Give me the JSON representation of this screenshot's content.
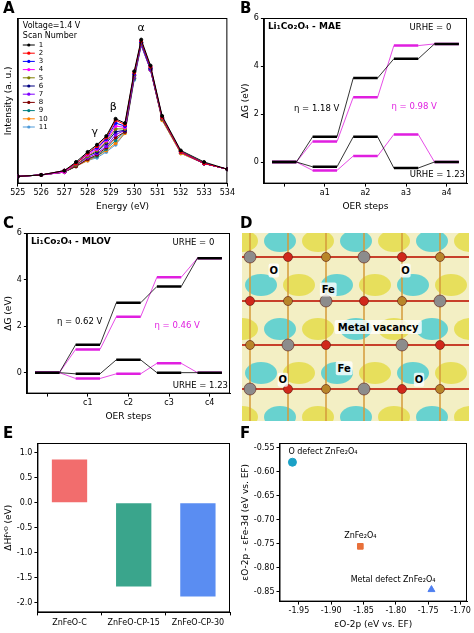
{
  "chart_data": [
    {
      "panel": "A",
      "type": "line",
      "note": "Voltage=1.4 V",
      "legend_title": "Scan Number",
      "legend": "upper left",
      "x_label": "Energy (eV)",
      "y_label": "Intensity (a. u.)",
      "x": [
        525,
        526,
        527,
        527.5,
        528,
        528.4,
        528.8,
        529.2,
        529.6,
        530,
        530.3,
        530.7,
        531.2,
        532,
        533,
        534
      ],
      "xlim": [
        525,
        534
      ],
      "xticks": [
        525,
        526,
        527,
        528,
        529,
        530,
        531,
        532,
        533,
        534
      ],
      "ylim": [
        0,
        1.15
      ],
      "tick_labels": "x",
      "grid": false,
      "marker": "circle",
      "series": [
        {
          "name": "1",
          "color": "#000000",
          "values": [
            0.05,
            0.06,
            0.09,
            0.15,
            0.22,
            0.27,
            0.33,
            0.45,
            0.42,
            0.78,
            1.0,
            0.82,
            0.47,
            0.23,
            0.15,
            0.1
          ]
        },
        {
          "name": "2",
          "color": "#ff0000",
          "values": [
            0.05,
            0.06,
            0.09,
            0.14,
            0.21,
            0.26,
            0.32,
            0.44,
            0.41,
            0.77,
            0.99,
            0.81,
            0.46,
            0.22,
            0.14,
            0.1
          ]
        },
        {
          "name": "3",
          "color": "#0000ff",
          "values": [
            0.05,
            0.06,
            0.09,
            0.14,
            0.21,
            0.25,
            0.31,
            0.42,
            0.4,
            0.76,
            0.98,
            0.8,
            0.46,
            0.22,
            0.14,
            0.1
          ]
        },
        {
          "name": "4",
          "color": "#ff00ff",
          "values": [
            0.05,
            0.06,
            0.08,
            0.14,
            0.2,
            0.24,
            0.3,
            0.4,
            0.39,
            0.76,
            0.99,
            0.81,
            0.46,
            0.22,
            0.14,
            0.1
          ]
        },
        {
          "name": "5",
          "color": "#808000",
          "values": [
            0.05,
            0.06,
            0.08,
            0.13,
            0.19,
            0.23,
            0.29,
            0.38,
            0.38,
            0.75,
            0.97,
            0.8,
            0.45,
            0.22,
            0.14,
            0.1
          ]
        },
        {
          "name": "6",
          "color": "#000080",
          "values": [
            0.05,
            0.06,
            0.08,
            0.13,
            0.19,
            0.22,
            0.28,
            0.36,
            0.37,
            0.75,
            0.98,
            0.8,
            0.45,
            0.22,
            0.14,
            0.1
          ]
        },
        {
          "name": "7",
          "color": "#8000ff",
          "values": [
            0.05,
            0.06,
            0.08,
            0.13,
            0.18,
            0.21,
            0.26,
            0.34,
            0.37,
            0.74,
            0.96,
            0.79,
            0.45,
            0.22,
            0.14,
            0.1
          ]
        },
        {
          "name": "8",
          "color": "#800000",
          "values": [
            0.05,
            0.06,
            0.08,
            0.12,
            0.17,
            0.2,
            0.25,
            0.32,
            0.36,
            0.74,
            0.97,
            0.79,
            0.45,
            0.22,
            0.14,
            0.1
          ]
        },
        {
          "name": "9",
          "color": "#008080",
          "values": [
            0.05,
            0.06,
            0.08,
            0.12,
            0.17,
            0.19,
            0.24,
            0.3,
            0.36,
            0.73,
            0.98,
            0.8,
            0.45,
            0.22,
            0.14,
            0.1
          ]
        },
        {
          "name": "10",
          "color": "#ff8000",
          "values": [
            0.05,
            0.06,
            0.08,
            0.12,
            0.16,
            0.19,
            0.23,
            0.28,
            0.35,
            0.73,
            0.97,
            0.79,
            0.44,
            0.21,
            0.14,
            0.1
          ]
        },
        {
          "name": "11",
          "color": "#4f9bd9",
          "values": [
            0.05,
            0.06,
            0.08,
            0.12,
            0.16,
            0.18,
            0.22,
            0.27,
            0.35,
            0.72,
            0.96,
            0.79,
            0.44,
            0.21,
            0.14,
            0.1
          ]
        }
      ],
      "annotations": [
        {
          "text": "α",
          "x": 530.3,
          "y": 1.08,
          "color": "#000000"
        },
        {
          "text": "β",
          "x": 529.1,
          "y": 0.53,
          "color": "#000000"
        },
        {
          "text": "γ",
          "x": 528.3,
          "y": 0.36,
          "color": "#000000"
        }
      ]
    },
    {
      "panel": "B",
      "type": "step",
      "title": "Li₁Co₂O₄ - MAE",
      "x_label": "OER steps",
      "y_label": "ΔG (eV)",
      "categories": [
        null,
        "a1",
        "a2",
        "a3",
        "a4"
      ],
      "ylim": [
        -0.9,
        6
      ],
      "yticks": [
        0,
        2,
        4,
        6
      ],
      "grid": false,
      "series": [
        {
          "color": "#000000",
          "values": [
            0,
            1.05,
            3.5,
            4.3,
            4.92
          ]
        },
        {
          "color": "#e020e0",
          "values": [
            0,
            0.85,
            2.7,
            4.85,
            4.92
          ]
        },
        {
          "color": "#000000",
          "values": [
            0,
            -0.2,
            1.05,
            -0.25,
            0
          ]
        },
        {
          "color": "#e020e0",
          "values": [
            0,
            -0.35,
            0.25,
            1.15,
            0
          ]
        }
      ],
      "annotations": [
        {
          "text": "URHE = 0",
          "x": 3.6,
          "y": 5.6,
          "color": "#000000"
        },
        {
          "text": "URHE = 1.23",
          "x": 3.9,
          "y": -0.55,
          "color": "#000000"
        },
        {
          "text": "η = 1.18 V",
          "x": 0.8,
          "y": 2.2,
          "color": "#000000"
        },
        {
          "text": "η = 0.98 V",
          "x": 3.2,
          "y": 2.3,
          "color": "#e020e0"
        }
      ]
    },
    {
      "panel": "C",
      "type": "step",
      "title": "Li₁Co₂O₄ - MLOV",
      "x_label": "OER steps",
      "y_label": "ΔG (eV)",
      "categories": [
        null,
        "c1",
        "c2",
        "c3",
        "c4"
      ],
      "ylim": [
        -0.9,
        6
      ],
      "yticks": [
        0,
        2,
        4,
        6
      ],
      "grid": false,
      "series": [
        {
          "color": "#000000",
          "values": [
            0,
            1.2,
            3.0,
            3.7,
            4.92
          ]
        },
        {
          "color": "#e020e0",
          "values": [
            0,
            1.0,
            2.4,
            4.1,
            4.92
          ]
        },
        {
          "color": "#000000",
          "values": [
            0,
            -0.05,
            0.55,
            0.0,
            0
          ]
        },
        {
          "color": "#e020e0",
          "values": [
            0,
            -0.25,
            -0.05,
            0.4,
            0
          ]
        }
      ],
      "annotations": [
        {
          "text": "URHE = 0",
          "x": 3.6,
          "y": 5.6,
          "color": "#000000"
        },
        {
          "text": "URHE = 1.23",
          "x": 3.9,
          "y": -0.55,
          "color": "#000000"
        },
        {
          "text": "η = 0.62 V",
          "x": 0.8,
          "y": 2.2,
          "color": "#000000"
        },
        {
          "text": "η = 0.46 V",
          "x": 3.2,
          "y": 2.0,
          "color": "#e020e0"
        }
      ]
    },
    {
      "panel": "E",
      "type": "bar",
      "y_label": "ΔHfᵛᴼ (eV)",
      "categories": [
        "ZnFeO-C",
        "ZnFeO-CP-15",
        "ZnFeO-CP-30"
      ],
      "values": [
        0.87,
        -1.68,
        -1.88
      ],
      "colors": [
        "#f26d6d",
        "#3aa58c",
        "#5a8df2"
      ],
      "ylim": [
        -2.2,
        1.2
      ],
      "yticks": [
        {
          "value": -2,
          "label": "-2.0"
        },
        -1.5,
        {
          "value": -1,
          "label": "-1.0"
        },
        -0.5,
        {
          "value": 0,
          "label": "0.0"
        },
        0.5,
        {
          "value": 1,
          "label": "1.0"
        }
      ],
      "grid": false
    },
    {
      "panel": "F",
      "type": "scatter",
      "x_label": "εO-2p (eV vs. EF)",
      "y_label": "εO-2p - εFe-3d (eV vs. EF)",
      "xlim": [
        -1.98,
        -1.69
      ],
      "xticks": [
        -1.95,
        {
          "value": -1.9,
          "label": "-1.90"
        },
        -1.85,
        {
          "value": -1.8,
          "label": "-1.80"
        },
        -1.75,
        {
          "value": -1.7,
          "label": "-1.70"
        }
      ],
      "ylim": [
        -0.87,
        -0.54
      ],
      "yticks": [
        -0.55,
        {
          "value": -0.6,
          "label": "-0.60"
        },
        -0.65,
        {
          "value": -0.7,
          "label": "-0.70"
        },
        -0.75,
        {
          "value": -0.8,
          "label": "-0.80"
        },
        -0.85
      ],
      "grid": false,
      "series": [
        {
          "name": "O defect ZnFe₂O₄",
          "color": "#1ba1c6",
          "marker": "circle",
          "x": [
            -1.96
          ],
          "values": [
            -0.58
          ]
        },
        {
          "name": "ZnFe₂O₄",
          "color": "#e8703a",
          "marker": "rect",
          "x": [
            -1.855
          ],
          "values": [
            -0.755
          ]
        },
        {
          "name": "Metal defect ZnFe₂O₄",
          "color": "#4f7ff0",
          "marker": "triangle",
          "x": [
            -1.745
          ],
          "values": [
            -0.845
          ]
        }
      ]
    }
  ],
  "diagram": {
    "panel": "D",
    "labels": [
      "O",
      "Fe",
      "O",
      "Metal vacancy",
      "O",
      "Fe",
      "O"
    ]
  }
}
